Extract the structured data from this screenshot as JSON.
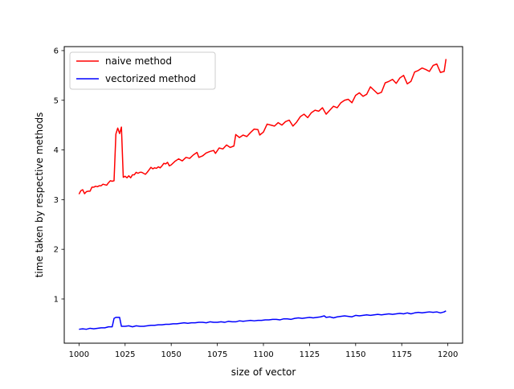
{
  "chart_data": {
    "type": "line",
    "title": "",
    "xlabel": "size of vector",
    "ylabel": "time taken by respective methods",
    "xlim": [
      992,
      1208
    ],
    "ylim": [
      0.11,
      6.08
    ],
    "xticks": [
      1000,
      1025,
      1050,
      1075,
      1100,
      1125,
      1150,
      1175,
      1200
    ],
    "yticks": [
      1,
      2,
      3,
      4,
      5,
      6
    ],
    "grid": false,
    "legend_position": "upper-left",
    "series": [
      {
        "name": "naive method",
        "color": "#ff0000",
        "points": [
          [
            1000,
            3.11
          ],
          [
            1001,
            3.18
          ],
          [
            1002,
            3.2
          ],
          [
            1003,
            3.12
          ],
          [
            1004,
            3.16
          ],
          [
            1005,
            3.17
          ],
          [
            1006,
            3.17
          ],
          [
            1007,
            3.25
          ],
          [
            1008,
            3.25
          ],
          [
            1009,
            3.27
          ],
          [
            1010,
            3.26
          ],
          [
            1011,
            3.28
          ],
          [
            1012,
            3.28
          ],
          [
            1013,
            3.31
          ],
          [
            1014,
            3.3
          ],
          [
            1015,
            3.29
          ],
          [
            1016,
            3.34
          ],
          [
            1017,
            3.38
          ],
          [
            1018,
            3.37
          ],
          [
            1019,
            3.38
          ],
          [
            1020,
            4.32
          ],
          [
            1021,
            4.44
          ],
          [
            1022,
            4.33
          ],
          [
            1023,
            4.46
          ],
          [
            1024,
            3.45
          ],
          [
            1025,
            3.47
          ],
          [
            1026,
            3.44
          ],
          [
            1027,
            3.48
          ],
          [
            1028,
            3.44
          ],
          [
            1029,
            3.5
          ],
          [
            1030,
            3.5
          ],
          [
            1031,
            3.55
          ],
          [
            1032,
            3.53
          ],
          [
            1033,
            3.55
          ],
          [
            1034,
            3.55
          ],
          [
            1035,
            3.53
          ],
          [
            1036,
            3.51
          ],
          [
            1037,
            3.55
          ],
          [
            1038,
            3.6
          ],
          [
            1039,
            3.65
          ],
          [
            1040,
            3.62
          ],
          [
            1041,
            3.64
          ],
          [
            1042,
            3.63
          ],
          [
            1043,
            3.66
          ],
          [
            1044,
            3.64
          ],
          [
            1045,
            3.68
          ],
          [
            1046,
            3.73
          ],
          [
            1047,
            3.72
          ],
          [
            1048,
            3.75
          ],
          [
            1049,
            3.68
          ],
          [
            1050,
            3.7
          ],
          [
            1052,
            3.77
          ],
          [
            1054,
            3.82
          ],
          [
            1056,
            3.78
          ],
          [
            1058,
            3.85
          ],
          [
            1060,
            3.83
          ],
          [
            1062,
            3.9
          ],
          [
            1064,
            3.95
          ],
          [
            1065,
            3.85
          ],
          [
            1067,
            3.88
          ],
          [
            1069,
            3.94
          ],
          [
            1071,
            3.97
          ],
          [
            1073,
            3.99
          ],
          [
            1074,
            3.93
          ],
          [
            1076,
            4.04
          ],
          [
            1078,
            4.02
          ],
          [
            1080,
            4.1
          ],
          [
            1082,
            4.05
          ],
          [
            1084,
            4.08
          ],
          [
            1085,
            4.31
          ],
          [
            1087,
            4.25
          ],
          [
            1089,
            4.3
          ],
          [
            1091,
            4.27
          ],
          [
            1093,
            4.35
          ],
          [
            1095,
            4.42
          ],
          [
            1097,
            4.41
          ],
          [
            1098,
            4.3
          ],
          [
            1100,
            4.36
          ],
          [
            1102,
            4.52
          ],
          [
            1104,
            4.5
          ],
          [
            1106,
            4.48
          ],
          [
            1108,
            4.55
          ],
          [
            1110,
            4.5
          ],
          [
            1112,
            4.57
          ],
          [
            1114,
            4.6
          ],
          [
            1116,
            4.48
          ],
          [
            1118,
            4.56
          ],
          [
            1120,
            4.67
          ],
          [
            1122,
            4.72
          ],
          [
            1124,
            4.65
          ],
          [
            1126,
            4.75
          ],
          [
            1128,
            4.8
          ],
          [
            1130,
            4.78
          ],
          [
            1132,
            4.85
          ],
          [
            1134,
            4.72
          ],
          [
            1136,
            4.8
          ],
          [
            1138,
            4.88
          ],
          [
            1140,
            4.85
          ],
          [
            1142,
            4.95
          ],
          [
            1144,
            5.0
          ],
          [
            1146,
            5.02
          ],
          [
            1148,
            4.95
          ],
          [
            1150,
            5.1
          ],
          [
            1152,
            5.15
          ],
          [
            1154,
            5.08
          ],
          [
            1156,
            5.12
          ],
          [
            1158,
            5.27
          ],
          [
            1160,
            5.2
          ],
          [
            1162,
            5.13
          ],
          [
            1164,
            5.16
          ],
          [
            1166,
            5.35
          ],
          [
            1168,
            5.38
          ],
          [
            1170,
            5.42
          ],
          [
            1172,
            5.34
          ],
          [
            1174,
            5.45
          ],
          [
            1176,
            5.5
          ],
          [
            1178,
            5.33
          ],
          [
            1180,
            5.38
          ],
          [
            1182,
            5.57
          ],
          [
            1184,
            5.6
          ],
          [
            1186,
            5.65
          ],
          [
            1188,
            5.62
          ],
          [
            1190,
            5.58
          ],
          [
            1192,
            5.7
          ],
          [
            1194,
            5.73
          ],
          [
            1196,
            5.56
          ],
          [
            1198,
            5.58
          ],
          [
            1199,
            5.83
          ]
        ]
      },
      {
        "name": "vectorized method",
        "color": "#0000ff",
        "points": [
          [
            1000,
            0.39
          ],
          [
            1002,
            0.4
          ],
          [
            1004,
            0.39
          ],
          [
            1006,
            0.41
          ],
          [
            1008,
            0.4
          ],
          [
            1010,
            0.41
          ],
          [
            1012,
            0.42
          ],
          [
            1014,
            0.42
          ],
          [
            1016,
            0.44
          ],
          [
            1018,
            0.44
          ],
          [
            1019,
            0.61
          ],
          [
            1020,
            0.63
          ],
          [
            1022,
            0.63
          ],
          [
            1023,
            0.45
          ],
          [
            1025,
            0.45
          ],
          [
            1027,
            0.46
          ],
          [
            1029,
            0.44
          ],
          [
            1031,
            0.46
          ],
          [
            1033,
            0.45
          ],
          [
            1035,
            0.45
          ],
          [
            1037,
            0.46
          ],
          [
            1039,
            0.47
          ],
          [
            1041,
            0.47
          ],
          [
            1043,
            0.48
          ],
          [
            1045,
            0.48
          ],
          [
            1047,
            0.49
          ],
          [
            1049,
            0.49
          ],
          [
            1051,
            0.5
          ],
          [
            1053,
            0.5
          ],
          [
            1055,
            0.51
          ],
          [
            1057,
            0.52
          ],
          [
            1059,
            0.51
          ],
          [
            1061,
            0.52
          ],
          [
            1063,
            0.52
          ],
          [
            1065,
            0.53
          ],
          [
            1067,
            0.53
          ],
          [
            1069,
            0.52
          ],
          [
            1071,
            0.54
          ],
          [
            1073,
            0.53
          ],
          [
            1075,
            0.53
          ],
          [
            1077,
            0.54
          ],
          [
            1079,
            0.53
          ],
          [
            1081,
            0.55
          ],
          [
            1083,
            0.54
          ],
          [
            1085,
            0.54
          ],
          [
            1087,
            0.56
          ],
          [
            1089,
            0.55
          ],
          [
            1091,
            0.56
          ],
          [
            1093,
            0.57
          ],
          [
            1095,
            0.56
          ],
          [
            1097,
            0.57
          ],
          [
            1099,
            0.57
          ],
          [
            1101,
            0.58
          ],
          [
            1103,
            0.58
          ],
          [
            1105,
            0.59
          ],
          [
            1107,
            0.59
          ],
          [
            1109,
            0.58
          ],
          [
            1111,
            0.6
          ],
          [
            1113,
            0.6
          ],
          [
            1115,
            0.59
          ],
          [
            1117,
            0.61
          ],
          [
            1119,
            0.62
          ],
          [
            1121,
            0.61
          ],
          [
            1123,
            0.62
          ],
          [
            1125,
            0.63
          ],
          [
            1127,
            0.62
          ],
          [
            1129,
            0.63
          ],
          [
            1131,
            0.64
          ],
          [
            1133,
            0.66
          ],
          [
            1134,
            0.63
          ],
          [
            1136,
            0.64
          ],
          [
            1138,
            0.62
          ],
          [
            1140,
            0.64
          ],
          [
            1142,
            0.65
          ],
          [
            1144,
            0.66
          ],
          [
            1146,
            0.65
          ],
          [
            1148,
            0.64
          ],
          [
            1150,
            0.67
          ],
          [
            1152,
            0.66
          ],
          [
            1154,
            0.67
          ],
          [
            1156,
            0.68
          ],
          [
            1158,
            0.67
          ],
          [
            1160,
            0.68
          ],
          [
            1162,
            0.69
          ],
          [
            1164,
            0.68
          ],
          [
            1166,
            0.69
          ],
          [
            1168,
            0.7
          ],
          [
            1170,
            0.69
          ],
          [
            1172,
            0.7
          ],
          [
            1174,
            0.71
          ],
          [
            1176,
            0.7
          ],
          [
            1178,
            0.72
          ],
          [
            1180,
            0.7
          ],
          [
            1182,
            0.72
          ],
          [
            1184,
            0.73
          ],
          [
            1186,
            0.72
          ],
          [
            1188,
            0.73
          ],
          [
            1190,
            0.74
          ],
          [
            1192,
            0.73
          ],
          [
            1194,
            0.74
          ],
          [
            1196,
            0.72
          ],
          [
            1198,
            0.74
          ],
          [
            1199,
            0.76
          ]
        ]
      }
    ]
  }
}
